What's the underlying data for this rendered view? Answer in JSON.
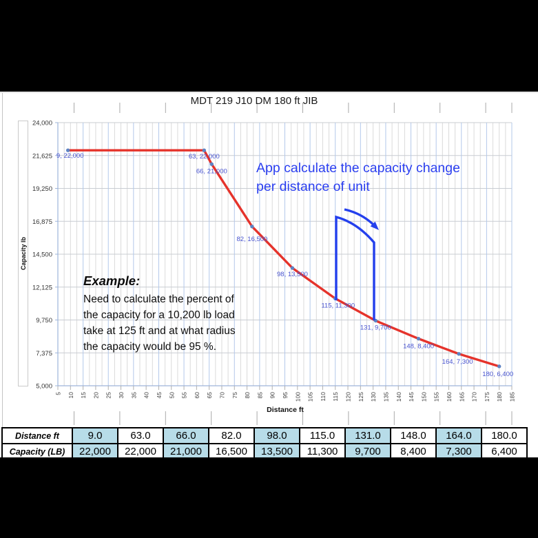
{
  "chart_data": {
    "type": "line",
    "title": "MDT 219 J10 DM 180 ft JIB",
    "xlabel": "Distance ft",
    "ylabel": "Capacity lb",
    "x": [
      9,
      63,
      66,
      82,
      98,
      115,
      131,
      148,
      164,
      180
    ],
    "y": [
      22000,
      22000,
      21000,
      16500,
      13500,
      11300,
      9700,
      8400,
      7300,
      6400
    ],
    "point_labels": [
      "9, 22,000",
      "63, 22,000",
      "66, 21,000",
      "82, 16,500",
      "98, 13,500",
      "115, 11,300",
      "131, 9,700",
      "148, 8,400",
      "164, 7,300",
      "180, 6,400"
    ],
    "xlim": [
      5,
      185
    ],
    "ylim": [
      5000,
      24000
    ],
    "x_tick_step": 5,
    "y_ticks": [
      5000,
      7375,
      9750,
      12125,
      14500,
      16875,
      19250,
      21625,
      24000
    ],
    "grid": true,
    "legend": false,
    "line_color": "#e5332b",
    "marker_color": "#5d83c3",
    "point_label_color": "#4753cf",
    "bracket_color": "#2440ed"
  },
  "annotation": {
    "text_line1": "App calculate the capacity change",
    "text_line2": "per distance of unit",
    "color": "#2b3ff0"
  },
  "example": {
    "heading": "Example:",
    "lines": [
      "Need to calculate the percent of",
      "the capacity for a 10,200 lb load",
      "take at 125 ft and at what radius",
      "the capacity would be 95 %."
    ]
  },
  "table": {
    "row_headers": [
      "Distance ft",
      "Capacity (LB)"
    ],
    "distances": [
      "9.0",
      "63.0",
      "66.0",
      "82.0",
      "98.0",
      "115.0",
      "131.0",
      "148.0",
      "164.0",
      "180.0"
    ],
    "capacities": [
      "22,000",
      "22,000",
      "21,000",
      "16,500",
      "13,500",
      "11,300",
      "9,700",
      "8,400",
      "7,300",
      "6,400"
    ],
    "highlight_color": "#b7dce8"
  }
}
